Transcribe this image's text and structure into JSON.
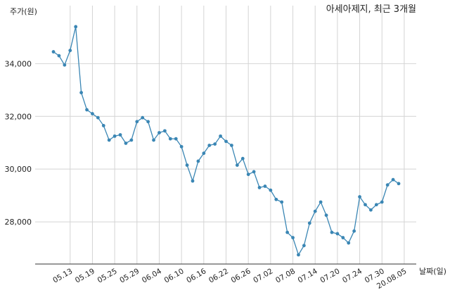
{
  "chart_data": {
    "type": "line",
    "title": "아세아제지, 최근 3개월",
    "ylabel": "주가(원)",
    "xlabel": "날짜(일)",
    "ylim": [
      26400,
      36200
    ],
    "yticks": [
      28000,
      30000,
      32000,
      34000
    ],
    "ytick_labels": [
      "28,000",
      "30,000",
      "32,000",
      "34,000"
    ],
    "xtick_labels": [
      "05.13",
      "05.19",
      "05.25",
      "05.29",
      "06.04",
      "06.10",
      "06.16",
      "06.22",
      "06.26",
      "07.02",
      "07.08",
      "07.14",
      "07.20",
      "07.24",
      "07.30",
      "20.08.05"
    ],
    "xtick_index": [
      3,
      7,
      11,
      15,
      19,
      23,
      27,
      31,
      35,
      39,
      43,
      47,
      51,
      55,
      59,
      63
    ],
    "grid": true,
    "color": "#3a86b4",
    "series": [
      {
        "values": [
          34450,
          34300,
          33950,
          34500,
          35400,
          32900,
          32250,
          32100,
          31950,
          31650,
          31100,
          31250,
          31300,
          30980,
          31100,
          31800,
          31950,
          31800,
          31100,
          31380,
          31450,
          31150,
          31150,
          30850,
          30150,
          29550,
          30300,
          30600,
          30900,
          30950,
          31250,
          31050,
          30900,
          30150,
          30400,
          29800,
          29900,
          29300,
          29350,
          29200,
          28850,
          28750,
          27600,
          27400,
          26750,
          27100,
          27950,
          28400,
          28750,
          28250,
          27600,
          27550,
          27400,
          27200,
          27650,
          28950,
          28650,
          28450,
          28650,
          28750,
          29400,
          29600,
          29450
        ]
      }
    ]
  }
}
